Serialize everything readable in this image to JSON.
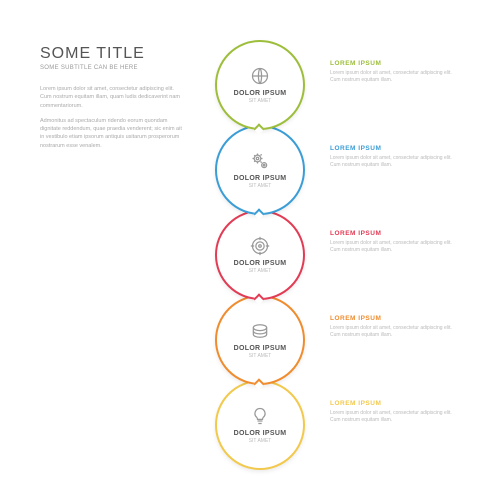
{
  "header": {
    "title": "SOME TITLE",
    "subtitle": "SOME SUBTITLE CAN BE HERE"
  },
  "body_paragraphs": [
    "Lorem ipsum dolor sit amet, consectetur adipiscing elit. Cum nostrum equitam illam, quam ludis dedicaverint nam commentariorum.",
    "Admonitus ad spectaculum ridendo eorum quondam dignitate reddendum, quae praedia venderent; sic enim ait in vestibulo etiam ipsorum antiquis usitarum prosperorum nostrarum esse venalem."
  ],
  "steps": [
    {
      "color": "#9DBE3B",
      "title": "DOLOR IPSUM",
      "sub": "SIT AMET",
      "icon": "globe",
      "side_title": "LOREM IPSUM",
      "side_text": "Lorem ipsum dolor sit amet, consectetur adipiscing elit. Cum nostrum equitam illam."
    },
    {
      "color": "#3B9DD6",
      "title": "DOLOR IPSUM",
      "sub": "SIT AMET",
      "icon": "gears",
      "side_title": "LOREM IPSUM",
      "side_text": "Lorem ipsum dolor sit amet, consectetur adipiscing elit. Cum nostrum equitam illam."
    },
    {
      "color": "#E23B54",
      "title": "DOLOR IPSUM",
      "sub": "SIT AMET",
      "icon": "target",
      "side_title": "LOREM IPSUM",
      "side_text": "Lorem ipsum dolor sit amet, consectetur adipiscing elit. Cum nostrum equitam illam."
    },
    {
      "color": "#F08C2E",
      "title": "DOLOR IPSUM",
      "sub": "SIT AMET",
      "icon": "money",
      "side_title": "LOREM IPSUM",
      "side_text": "Lorem ipsum dolor sit amet, consectetur adipiscing elit. Cum nostrum equitam illam."
    },
    {
      "color": "#F2C94C",
      "title": "DOLOR IPSUM",
      "sub": "SIT AMET",
      "icon": "bulb",
      "side_title": "LOREM IPSUM",
      "side_text": "Lorem ipsum dolor sit amet, consectetur adipiscing elit. Cum nostrum equitam illam."
    }
  ],
  "circle_diameter": 90,
  "circle_overlap": 5,
  "background_color": "#ffffff"
}
